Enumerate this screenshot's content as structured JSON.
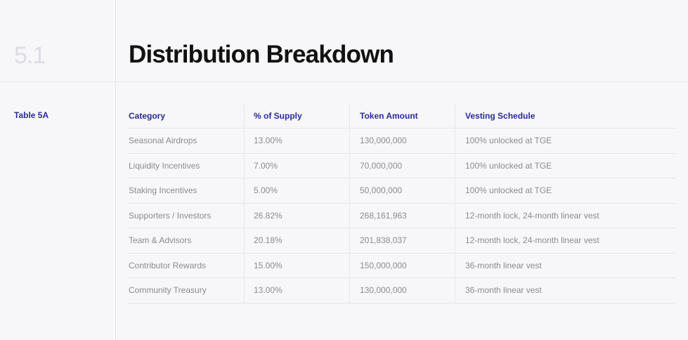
{
  "section": {
    "number": "5.1",
    "title": "Distribution Breakdown"
  },
  "table": {
    "label": "Table 5A",
    "headers": [
      "Category",
      "% of Supply",
      "Token Amount",
      "Vesting Schedule"
    ],
    "rows": [
      [
        "Seasonal Airdrops",
        "13.00%",
        "130,000,000",
        "100% unlocked at TGE"
      ],
      [
        "Liquidity Incentives",
        "7.00%",
        "70,000,000",
        "100% unlocked at TGE"
      ],
      [
        "Staking Incentives",
        "5.00%",
        "50,000,000",
        "100% unlocked at TGE"
      ],
      [
        "Supporters / Investors",
        "26.82%",
        "268,161,963",
        "12-month lock, 24-month linear vest"
      ],
      [
        "Team & Advisors",
        "20.18%",
        "201,838,037",
        "12-month lock, 24-month linear vest"
      ],
      [
        "Contributor Rewards",
        "15.00%",
        "150,000,000",
        "36-month linear vest"
      ],
      [
        "Community Treasury",
        "13.00%",
        "130,000,000",
        "36-month linear vest"
      ]
    ]
  }
}
